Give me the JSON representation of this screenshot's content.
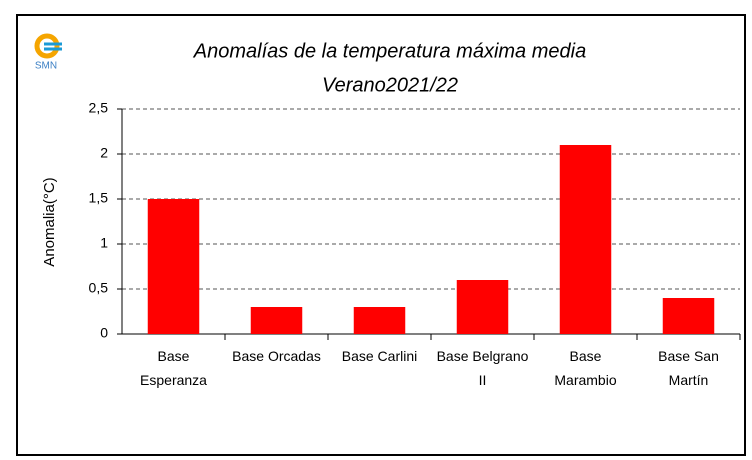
{
  "logo": "SMN",
  "chart_data": {
    "type": "bar",
    "title": "Anomalías de la temperatura máxima media",
    "subtitle": "Verano2021/22",
    "y_label": "Anomalia(°C)",
    "categories": [
      "Base Esperanza",
      "Base Orcadas",
      "Base Carlini",
      "Base Belgrano II",
      "Base Marambio",
      "Base San Martín"
    ],
    "values": [
      1.5,
      0.3,
      0.3,
      0.6,
      2.1,
      0.4
    ],
    "color": "#ff0000",
    "ylim": [
      0,
      2.5
    ],
    "yticks": [
      0,
      {
        "value": 0.5,
        "label": "0,5"
      },
      1,
      {
        "value": 1.5,
        "label": "1,5"
      },
      2,
      {
        "value": 2.5,
        "label": "2,5"
      }
    ],
    "grid": true
  }
}
